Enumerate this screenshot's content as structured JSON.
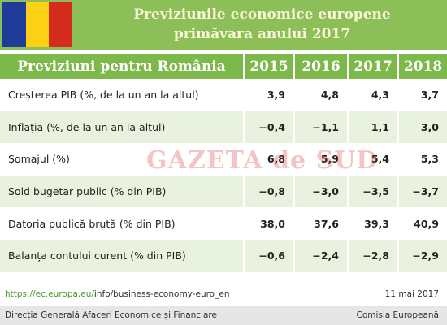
{
  "header": {
    "title_line1": "Previziunile economice europene",
    "title_line2": "primăvara anului 2017"
  },
  "table": {
    "columns": [
      "Previziuni pentru România",
      "2015",
      "2016",
      "2017",
      "2018"
    ],
    "rows": [
      [
        "Creșterea PIB (%, de la un an la altul)",
        "3,9",
        "4,8",
        "4,3",
        "3,7"
      ],
      [
        "Inflația (%, de la un an la altul)",
        "−0,4",
        "−1,1",
        "1,1",
        "3,0"
      ],
      [
        "Șomajul (%)",
        "6,8",
        "5,9",
        "5,4",
        "5,3"
      ],
      [
        "Sold bugetar public (% din PIB)",
        "−0,8",
        "−3,0",
        "−3,5",
        "−3,7"
      ],
      [
        "Datoria publică brută (% din PIB)",
        "38,0",
        "37,6",
        "39,3",
        "40,9"
      ],
      [
        "Balanța contului curent (% din PIB)",
        "−0,6",
        "−2,4",
        "−2,8",
        "−2,9"
      ]
    ]
  },
  "watermark": "GAZETA de SUD",
  "footer": {
    "url_domain": "https://ec.europa.eu/",
    "url_path": "info/business-economy-euro_en",
    "date": "11 mai 2017",
    "left": "Direcția Generală Afaceri Economice și Financiare",
    "right": "Comisia Europeană"
  }
}
